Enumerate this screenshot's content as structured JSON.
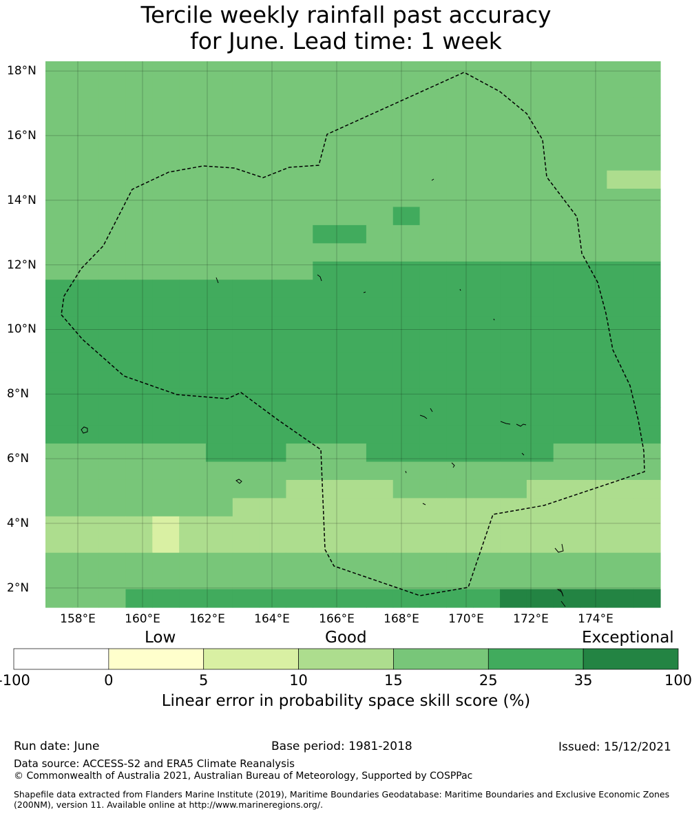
{
  "title_line1": "Tercile weekly rainfall past accuracy",
  "title_line2": "for June. Lead time: 1 week",
  "map": {
    "lon_min": 157,
    "lon_max": 176,
    "lat_min": 1.4,
    "lat_max": 18.3,
    "lon_ticks": [
      "158°E",
      "160°E",
      "162°E",
      "164°E",
      "166°E",
      "168°E",
      "170°E",
      "172°E",
      "174°E"
    ],
    "lat_ticks": [
      "18°N",
      "16°N",
      "14°N",
      "12°N",
      "10°N",
      "8°N",
      "6°N",
      "4°N",
      "2°N"
    ],
    "palette": [
      "#ffffff",
      "#ffffcc",
      "#d9f0a3",
      "#addd8e",
      "#78c679",
      "#41ab5d",
      "#238443"
    ],
    "grid_cols": 23,
    "grid_rows": 30,
    "grid": [
      "44444444444444444444444",
      "44444444444444444444444",
      "44444444444444444444444",
      "44444444444444444444444",
      "44444444444444444444444",
      "44444444444444444444444",
      "44444444444444444444433",
      "44444444444444444444444",
      "44444444444445444444444",
      "44444444445544444444444",
      "44444444444444444444444",
      "44444444445555555555555",
      "55555555555555555555555",
      "55555555555555555555555",
      "55555555555555555555555",
      "55555555555555555555555",
      "55555555555555555555555",
      "55555555555555555555555",
      "55555555555555555555555",
      "55555555555555555555555",
      "55555555555555555555555",
      "44444455544455555554444",
      "44444444444444444444444",
      "44444444433334444433333",
      "44444443333333333333333",
      "33332333333333333333333",
      "33332333333333333333333",
      "44444444444444444444444",
      "44444444444444444444444",
      "44455555555555555666666"
    ],
    "eez_label": ""
  },
  "colorbar": {
    "categories": [
      "Low",
      "Good",
      "Exceptional"
    ],
    "ticks": [
      "-100",
      "0",
      "5",
      "10",
      "15",
      "25",
      "35",
      "100"
    ],
    "colors": [
      "#ffffff",
      "#ffffcc",
      "#d9f0a3",
      "#addd8e",
      "#78c679",
      "#41ab5d",
      "#238443"
    ],
    "label": "Linear error in probability space skill score (%)"
  },
  "footer": {
    "run_date": "Run date: June",
    "base_period": "Base period: 1981-2018",
    "issued": "Issued: 15/12/2021",
    "data_source": "Data source: ACCESS-S2 and ERA5 Climate Reanalysis",
    "copyright": "© Commonwealth of Australia 2021, Australian Bureau of Meteorology, Supported by COSPPac",
    "shapefile": "Shapefile data extracted from Flanders Marine Institute (2019), Maritime Boundaries Geodatabase: Maritime Boundaries and Exclusive Economic Zones (200NM), version 11. Available online at http://www.marineregions.org/."
  }
}
